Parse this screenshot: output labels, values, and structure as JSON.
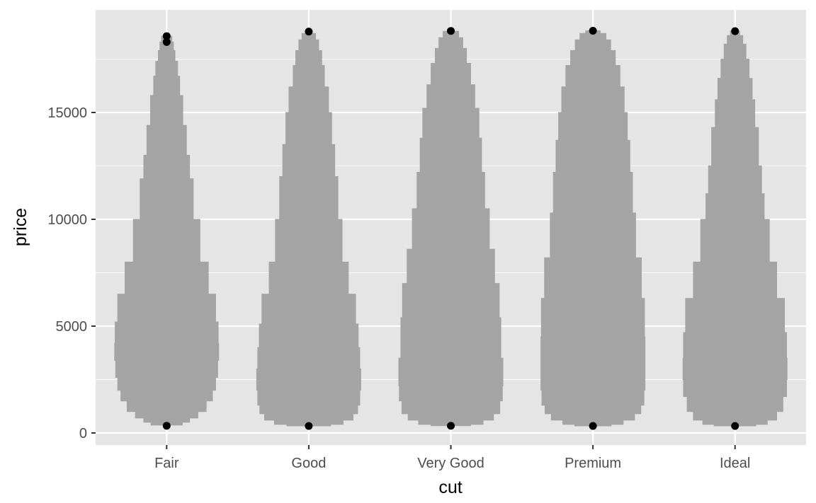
{
  "chart_data": {
    "type": "violin",
    "xlabel": "cut",
    "ylabel": "price",
    "categories": [
      "Fair",
      "Good",
      "Very Good",
      "Premium",
      "Ideal"
    ],
    "ylim": [
      -600,
      19700
    ],
    "yticks": [
      0,
      5000,
      10000,
      15000
    ],
    "ytick_labels": [
      "0",
      "5000",
      "10000",
      "15000"
    ],
    "grid": true,
    "colors": {
      "panel_background": "#e5e5e5",
      "grid": "#ffffff",
      "violin_fill": "#a4a4a4",
      "point": "#000000",
      "tick_text": "#4d4d4d",
      "tick_mark": "#333333"
    },
    "violins": [
      {
        "category": "Fair",
        "profile": [
          [
            370,
            0.3
          ],
          [
            500,
            0.44
          ],
          [
            700,
            0.6
          ],
          [
            1000,
            0.76
          ],
          [
            1500,
            0.88
          ],
          [
            2000,
            0.94
          ],
          [
            2600,
            0.98
          ],
          [
            3400,
            1.0
          ],
          [
            4200,
            0.99
          ],
          [
            5200,
            0.94
          ],
          [
            6500,
            0.8
          ],
          [
            8000,
            0.64
          ],
          [
            10000,
            0.51
          ],
          [
            11900,
            0.44
          ],
          [
            13000,
            0.38
          ],
          [
            14400,
            0.31
          ],
          [
            15800,
            0.25
          ],
          [
            16700,
            0.21
          ],
          [
            17400,
            0.16
          ],
          [
            17900,
            0.13
          ],
          [
            18300,
            0.1
          ],
          [
            18574,
            0.03
          ]
        ],
        "points": [
          337,
          18300,
          18574
        ]
      },
      {
        "category": "Good",
        "profile": [
          [
            330,
            0.42
          ],
          [
            400,
            0.66
          ],
          [
            600,
            0.85
          ],
          [
            900,
            0.94
          ],
          [
            1300,
            0.98
          ],
          [
            2000,
            1.0
          ],
          [
            3000,
            0.98
          ],
          [
            4000,
            0.95
          ],
          [
            5100,
            0.9
          ],
          [
            6500,
            0.76
          ],
          [
            8000,
            0.64
          ],
          [
            10000,
            0.56
          ],
          [
            12000,
            0.5
          ],
          [
            13500,
            0.44
          ],
          [
            15000,
            0.38
          ],
          [
            16200,
            0.3
          ],
          [
            17200,
            0.25
          ],
          [
            17900,
            0.19
          ],
          [
            18400,
            0.13
          ],
          [
            18700,
            0.06
          ],
          [
            18788,
            0.02
          ]
        ],
        "points": [
          327,
          18788
        ]
      },
      {
        "category": "Very Good",
        "profile": [
          [
            340,
            0.38
          ],
          [
            400,
            0.62
          ],
          [
            600,
            0.82
          ],
          [
            900,
            0.94
          ],
          [
            1500,
            0.99
          ],
          [
            2200,
            1.0
          ],
          [
            3500,
            0.96
          ],
          [
            5400,
            0.93
          ],
          [
            7000,
            0.84
          ],
          [
            8600,
            0.74
          ],
          [
            10500,
            0.65
          ],
          [
            12200,
            0.59
          ],
          [
            13800,
            0.54
          ],
          [
            15200,
            0.46
          ],
          [
            16300,
            0.38
          ],
          [
            17300,
            0.3
          ],
          [
            18000,
            0.23
          ],
          [
            18500,
            0.15
          ],
          [
            18800,
            0.07
          ],
          [
            18818,
            0.02
          ]
        ],
        "points": [
          336,
          18818
        ]
      },
      {
        "category": "Premium",
        "profile": [
          [
            330,
            0.35
          ],
          [
            400,
            0.58
          ],
          [
            600,
            0.8
          ],
          [
            900,
            0.92
          ],
          [
            1300,
            0.98
          ],
          [
            2000,
            1.0
          ],
          [
            3000,
            1.0
          ],
          [
            4500,
            0.99
          ],
          [
            6300,
            0.93
          ],
          [
            8200,
            0.82
          ],
          [
            10300,
            0.76
          ],
          [
            12200,
            0.71
          ],
          [
            13700,
            0.66
          ],
          [
            15000,
            0.6
          ],
          [
            16200,
            0.52
          ],
          [
            17200,
            0.43
          ],
          [
            17900,
            0.34
          ],
          [
            18400,
            0.25
          ],
          [
            18700,
            0.14
          ],
          [
            18823,
            0.05
          ]
        ],
        "points": [
          326,
          18823
        ]
      },
      {
        "category": "Ideal",
        "profile": [
          [
            330,
            0.4
          ],
          [
            400,
            0.62
          ],
          [
            600,
            0.8
          ],
          [
            1000,
            0.92
          ],
          [
            1700,
            0.99
          ],
          [
            2500,
            1.0
          ],
          [
            3500,
            0.99
          ],
          [
            4700,
            0.95
          ],
          [
            6300,
            0.8
          ],
          [
            8000,
            0.66
          ],
          [
            10000,
            0.56
          ],
          [
            11200,
            0.51
          ],
          [
            12500,
            0.45
          ],
          [
            14300,
            0.38
          ],
          [
            15600,
            0.33
          ],
          [
            16600,
            0.27
          ],
          [
            17500,
            0.21
          ],
          [
            18200,
            0.15
          ],
          [
            18600,
            0.09
          ],
          [
            18806,
            0.03
          ]
        ],
        "points": [
          326,
          18806
        ]
      }
    ]
  }
}
